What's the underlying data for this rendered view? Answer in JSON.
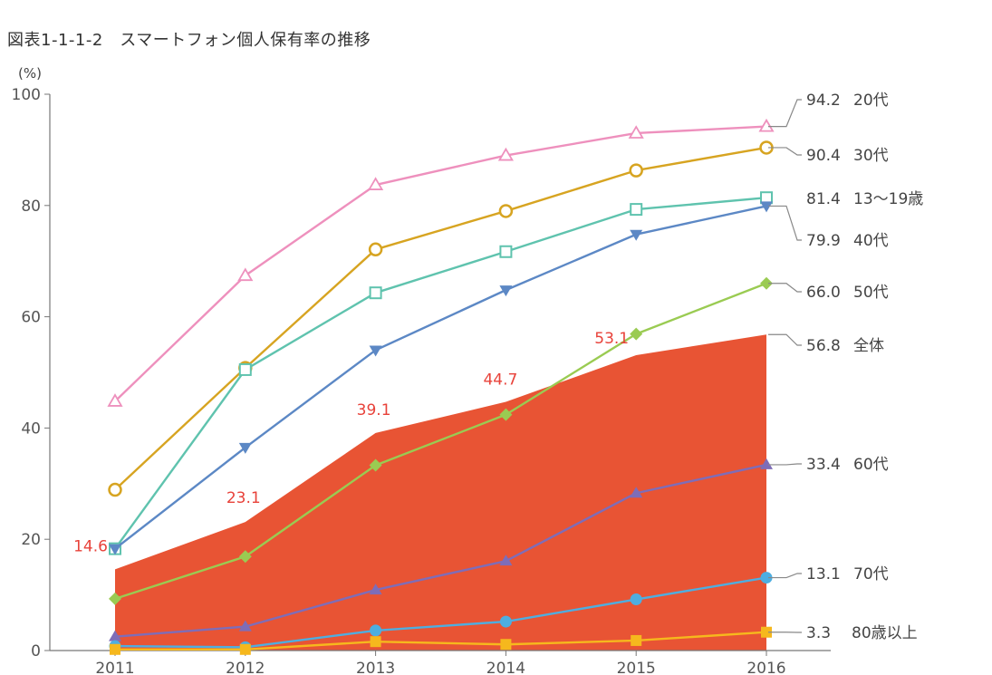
{
  "title": "図表1-1-1-2　スマートフォン個人保有率の推移",
  "chart_data": {
    "type": "line",
    "title": "図表1-1-1-2　スマートフォン個人保有率の推移",
    "xlabel": "",
    "ylabel": "(%)",
    "x": [
      "2011",
      "2012",
      "2013",
      "2014",
      "2015",
      "2016"
    ],
    "ylim": [
      0,
      100
    ],
    "yticks": [
      0,
      20,
      40,
      60,
      80,
      100
    ],
    "grid": false,
    "total": {
      "name": "全体",
      "values": [
        14.6,
        23.1,
        39.1,
        44.7,
        53.1,
        56.8
      ],
      "end_label": "56.8",
      "color": "#e85434",
      "label_color": "#e8423a"
    },
    "series": [
      {
        "name": "20代",
        "end_label": "94.2",
        "marker": "triangle-open",
        "color": "#ee90bd",
        "values": [
          44.8,
          67.4,
          83.7,
          89.0,
          93.0,
          94.2
        ]
      },
      {
        "name": "30代",
        "end_label": "90.4",
        "marker": "circle-open",
        "color": "#d7a421",
        "values": [
          28.9,
          50.8,
          72.1,
          79.0,
          86.3,
          90.4
        ]
      },
      {
        "name": "13～19歳",
        "end_label": "81.4",
        "marker": "square-open",
        "color": "#5fc3ae",
        "values": [
          18.3,
          50.5,
          64.3,
          71.7,
          79.3,
          81.4
        ]
      },
      {
        "name": "40代",
        "end_label": "79.9",
        "marker": "triangle-down",
        "color": "#5c88c5",
        "values": [
          18.3,
          36.5,
          54.0,
          64.8,
          74.8,
          79.9
        ]
      },
      {
        "name": "50代",
        "end_label": "66.0",
        "marker": "diamond",
        "color": "#9acb52",
        "values": [
          9.3,
          16.9,
          33.3,
          42.4,
          56.9,
          66.0
        ]
      },
      {
        "name": "60代",
        "end_label": "33.4",
        "marker": "triangle",
        "color": "#7e6db8",
        "values": [
          2.5,
          4.3,
          10.9,
          16.1,
          28.3,
          33.4
        ]
      },
      {
        "name": "70代",
        "end_label": "13.1",
        "marker": "circle",
        "color": "#4eaee0",
        "values": [
          0.8,
          0.6,
          3.6,
          5.2,
          9.2,
          13.1
        ]
      },
      {
        "name": "80歳以上",
        "end_label": "3.3",
        "marker": "square",
        "color": "#f6b81d",
        "values": [
          0.2,
          0.2,
          1.6,
          1.1,
          1.8,
          3.3
        ]
      }
    ]
  }
}
